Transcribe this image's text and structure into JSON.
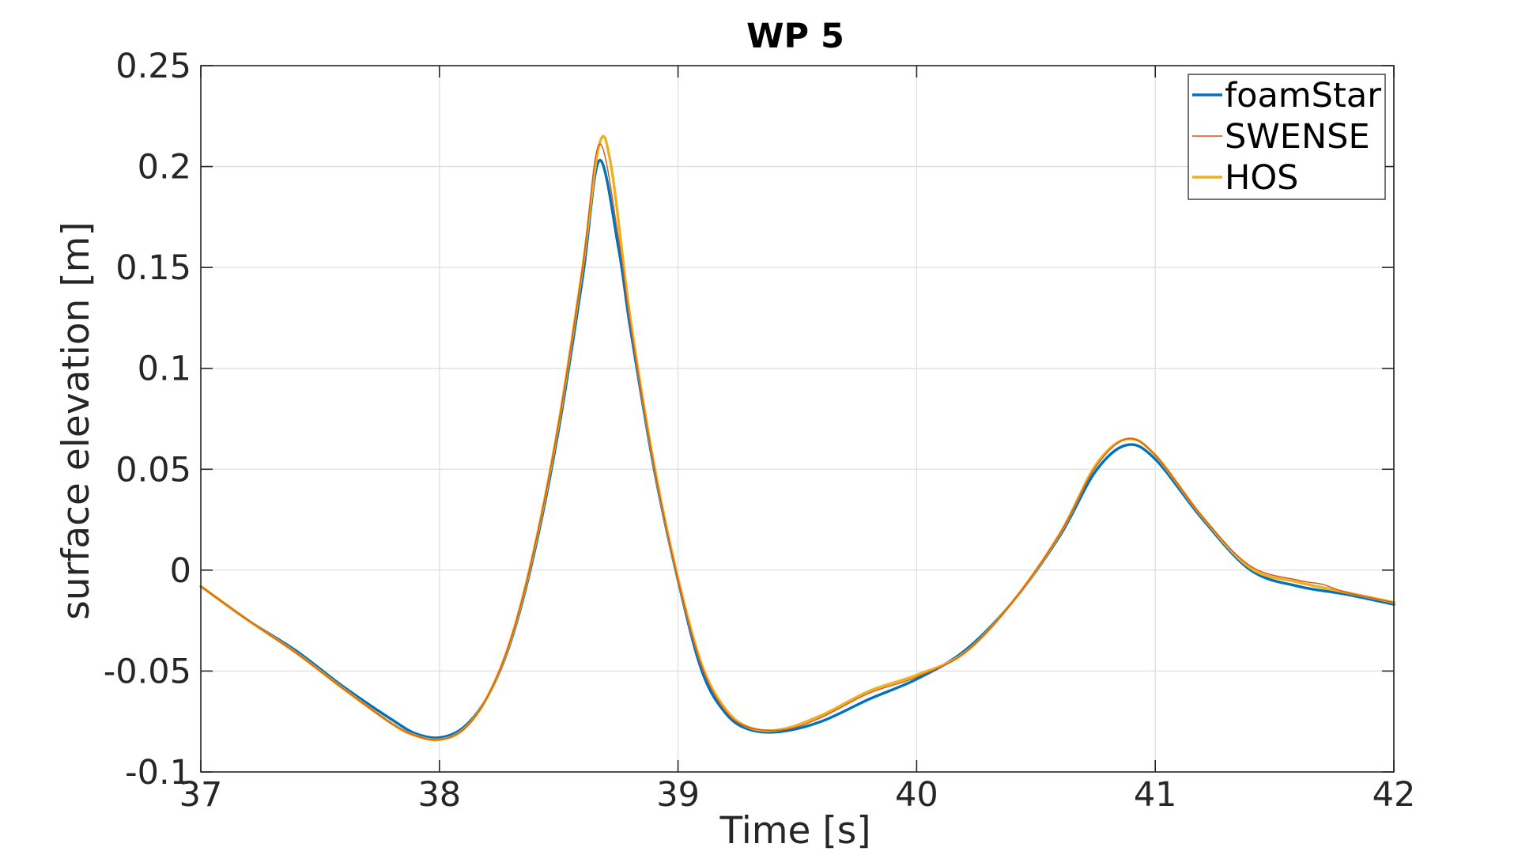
{
  "chart_data": {
    "type": "line",
    "title": "WP 5",
    "xlabel": "Time [s]",
    "ylabel": "surface elevation [m]",
    "xlim": [
      37,
      42
    ],
    "ylim": [
      -0.1,
      0.25
    ],
    "xticks": [
      37,
      38,
      39,
      40,
      41,
      42
    ],
    "xtick_labels": [
      "37",
      "38",
      "39",
      "40",
      "41",
      "42"
    ],
    "yticks": [
      -0.1,
      -0.05,
      0,
      0.05,
      0.1,
      0.15,
      0.2,
      0.25
    ],
    "ytick_labels": [
      "-0.1",
      "-0.05",
      "0",
      "0.05",
      "0.1",
      "0.15",
      "0.2",
      "0.25"
    ],
    "grid": true,
    "legend_position": "top-right",
    "series": [
      {
        "name": "foamStar",
        "color": "#0072BD",
        "x": [
          37.0,
          37.2,
          37.4,
          37.6,
          37.8,
          37.9,
          38.0,
          38.1,
          38.2,
          38.3,
          38.4,
          38.5,
          38.6,
          38.67,
          38.75,
          38.8,
          38.9,
          39.0,
          39.1,
          39.2,
          39.3,
          39.43,
          39.6,
          39.8,
          40.0,
          40.2,
          40.4,
          40.6,
          40.75,
          40.88,
          41.0,
          41.2,
          41.4,
          41.6,
          41.8,
          42.0
        ],
        "y": [
          -0.008,
          -0.025,
          -0.04,
          -0.058,
          -0.074,
          -0.081,
          -0.083,
          -0.078,
          -0.063,
          -0.035,
          0.01,
          0.07,
          0.145,
          0.203,
          0.16,
          0.12,
          0.05,
          -0.005,
          -0.05,
          -0.071,
          -0.079,
          -0.08,
          -0.075,
          -0.064,
          -0.054,
          -0.04,
          -0.016,
          0.017,
          0.049,
          0.062,
          0.055,
          0.025,
          0.0,
          -0.008,
          -0.012,
          -0.017
        ]
      },
      {
        "name": "SWENSE",
        "color": "#D95319",
        "x": [
          37.0,
          37.2,
          37.4,
          37.6,
          37.8,
          37.9,
          38.0,
          38.1,
          38.2,
          38.3,
          38.4,
          38.5,
          38.6,
          38.67,
          38.75,
          38.8,
          38.9,
          39.0,
          39.1,
          39.2,
          39.3,
          39.45,
          39.6,
          39.8,
          40.0,
          40.2,
          40.4,
          40.6,
          40.75,
          40.88,
          41.0,
          41.2,
          41.4,
          41.6,
          41.7,
          41.8,
          42.0
        ],
        "y": [
          -0.008,
          -0.025,
          -0.041,
          -0.059,
          -0.076,
          -0.082,
          -0.084,
          -0.079,
          -0.063,
          -0.034,
          0.012,
          0.073,
          0.15,
          0.211,
          0.165,
          0.122,
          0.051,
          -0.005,
          -0.048,
          -0.07,
          -0.078,
          -0.079,
          -0.073,
          -0.061,
          -0.053,
          -0.041,
          -0.016,
          0.018,
          0.051,
          0.065,
          0.057,
          0.026,
          0.002,
          -0.005,
          -0.007,
          -0.011,
          -0.016
        ]
      },
      {
        "name": "HOS",
        "color": "#EDB120",
        "x": [
          37.0,
          37.2,
          37.4,
          37.6,
          37.8,
          37.9,
          38.0,
          38.1,
          38.2,
          38.3,
          38.4,
          38.5,
          38.6,
          38.67,
          38.72,
          38.8,
          38.9,
          39.0,
          39.1,
          39.2,
          39.3,
          39.43,
          39.6,
          39.8,
          40.0,
          40.2,
          40.4,
          40.6,
          40.75,
          40.88,
          41.0,
          41.2,
          41.4,
          41.6,
          41.8,
          42.0
        ],
        "y": [
          -0.008,
          -0.025,
          -0.041,
          -0.059,
          -0.076,
          -0.082,
          -0.084,
          -0.079,
          -0.063,
          -0.034,
          0.012,
          0.073,
          0.15,
          0.211,
          0.2,
          0.125,
          0.052,
          -0.004,
          -0.047,
          -0.069,
          -0.078,
          -0.079,
          -0.072,
          -0.06,
          -0.052,
          -0.041,
          -0.016,
          0.018,
          0.052,
          0.065,
          0.057,
          0.026,
          0.001,
          -0.006,
          -0.011,
          -0.016
        ]
      }
    ]
  }
}
